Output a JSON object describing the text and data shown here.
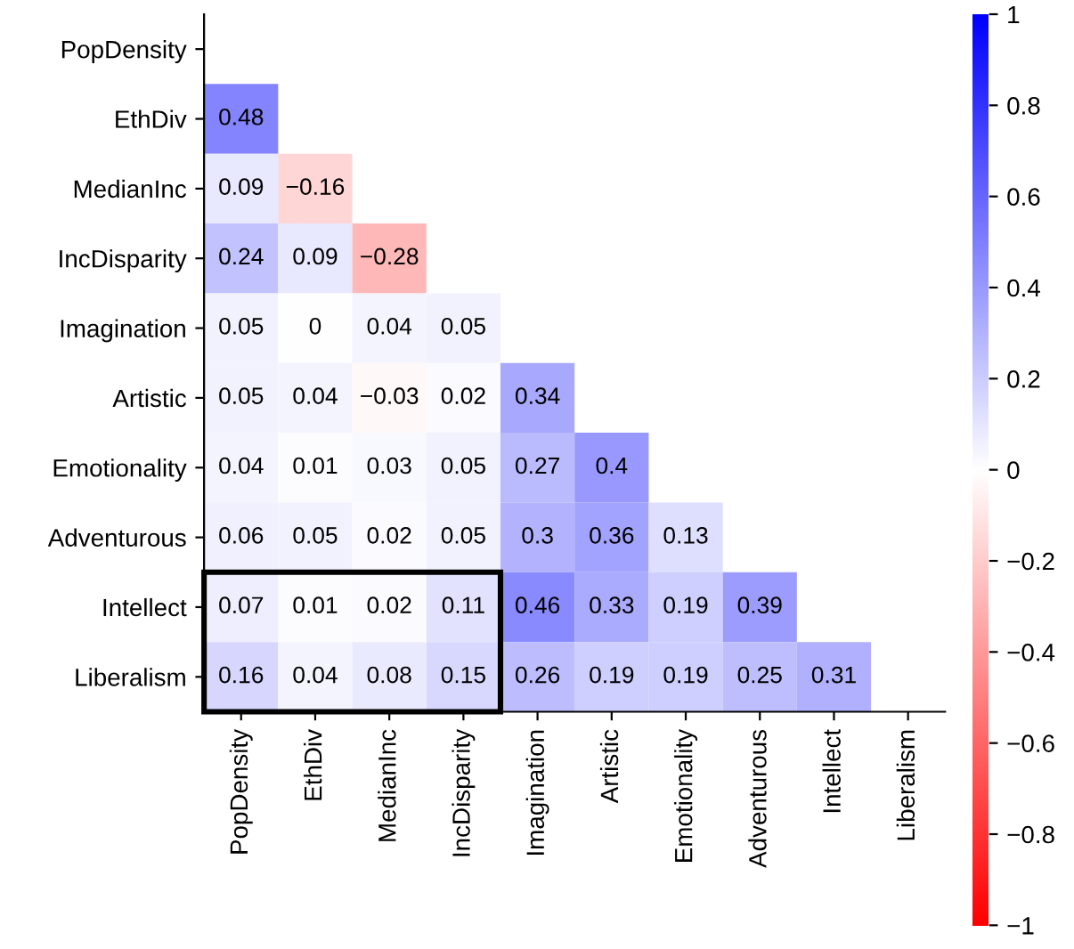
{
  "chart_data": {
    "type": "heatmap",
    "categories": [
      "PopDensity",
      "EthDiv",
      "MedianInc",
      "IncDisparity",
      "Imagination",
      "Artistic",
      "Emotionality",
      "Adventurous",
      "Intellect",
      "Liberalism"
    ],
    "y_categories": [
      "PopDensity",
      "EthDiv",
      "MedianInc",
      "IncDisparity",
      "Imagination",
      "Artistic",
      "Emotionality",
      "Adventurous",
      "Intellect",
      "Liberalism"
    ],
    "cells": [
      [
        null,
        null,
        null,
        null,
        null,
        null,
        null,
        null,
        null,
        null
      ],
      [
        0.48,
        null,
        null,
        null,
        null,
        null,
        null,
        null,
        null,
        null
      ],
      [
        0.09,
        -0.16,
        null,
        null,
        null,
        null,
        null,
        null,
        null,
        null
      ],
      [
        0.24,
        0.09,
        -0.28,
        null,
        null,
        null,
        null,
        null,
        null,
        null
      ],
      [
        0.05,
        0,
        0.04,
        0.05,
        null,
        null,
        null,
        null,
        null,
        null
      ],
      [
        0.05,
        0.04,
        -0.03,
        0.02,
        0.34,
        null,
        null,
        null,
        null,
        null
      ],
      [
        0.04,
        0.01,
        0.03,
        0.05,
        0.27,
        0.4,
        null,
        null,
        null,
        null
      ],
      [
        0.06,
        0.05,
        0.02,
        0.05,
        0.3,
        0.36,
        0.13,
        null,
        null,
        null
      ],
      [
        0.07,
        0.01,
        0.02,
        0.11,
        0.46,
        0.33,
        0.19,
        0.39,
        null,
        null
      ],
      [
        0.16,
        0.04,
        0.08,
        0.15,
        0.26,
        0.19,
        0.19,
        0.25,
        0.31,
        null
      ]
    ],
    "clim": [
      -1,
      1
    ],
    "cticks": [
      {
        "value": -1,
        "label": "−1"
      },
      {
        "value": -0.8,
        "label": "−0.8"
      },
      {
        "value": -0.6,
        "label": "−0.6"
      },
      {
        "value": -0.4,
        "label": "−0.4"
      },
      {
        "value": -0.2,
        "label": "−0.2"
      },
      0,
      0.2,
      0.4,
      0.6,
      0.8,
      1
    ],
    "data_labels": true
  }
}
